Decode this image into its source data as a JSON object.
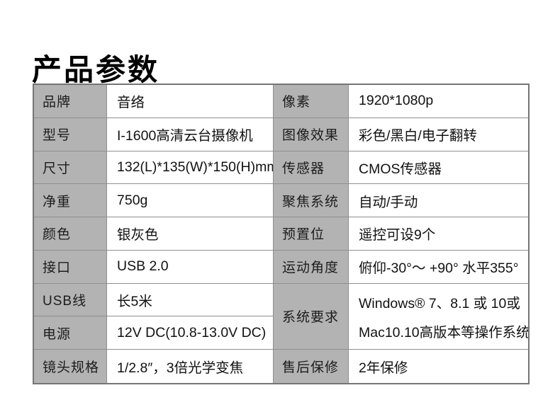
{
  "page": {
    "title": "产品参数"
  },
  "colors": {
    "label_cell_bg": "#b3b3b3",
    "grid_line": "#8f8f8f",
    "outer_border": "#757575",
    "text": "#111111"
  },
  "table": {
    "left": [
      {
        "label": "品牌",
        "value": "音络"
      },
      {
        "label": "型号",
        "value": "I-1600高清云台摄像机"
      },
      {
        "label": "尺寸",
        "value": "132(L)*135(W)*150(H)mm"
      },
      {
        "label": "净重",
        "value": "750g"
      },
      {
        "label": "颜色",
        "value": "银灰色"
      },
      {
        "label": "接口",
        "value": "USB 2.0"
      },
      {
        "label": "USB线",
        "value": "长5米"
      },
      {
        "label": "电源",
        "value": "12V DC(10.8-13.0V DC)"
      },
      {
        "label": "镜头规格",
        "value": "1/2.8″，3倍光学变焦"
      }
    ],
    "right": [
      {
        "label": "像素",
        "value": "1920*1080p"
      },
      {
        "label": "图像效果",
        "value": "彩色/黑白/电子翻转"
      },
      {
        "label": "传感器",
        "value": "CMOS传感器"
      },
      {
        "label": "聚焦系统",
        "value": "自动/手动"
      },
      {
        "label": "预置位",
        "value": "遥控可设9个"
      },
      {
        "label": "运动角度",
        "value": "俯仰-30°～ +90° 水平355°"
      },
      {
        "label": "系统要求",
        "value_lines": [
          "Windows® 7、8.1 或 10或",
          "Mac10.10高版本等操作系统"
        ]
      },
      {
        "label": "售后保修",
        "value": "2年保修"
      }
    ]
  }
}
